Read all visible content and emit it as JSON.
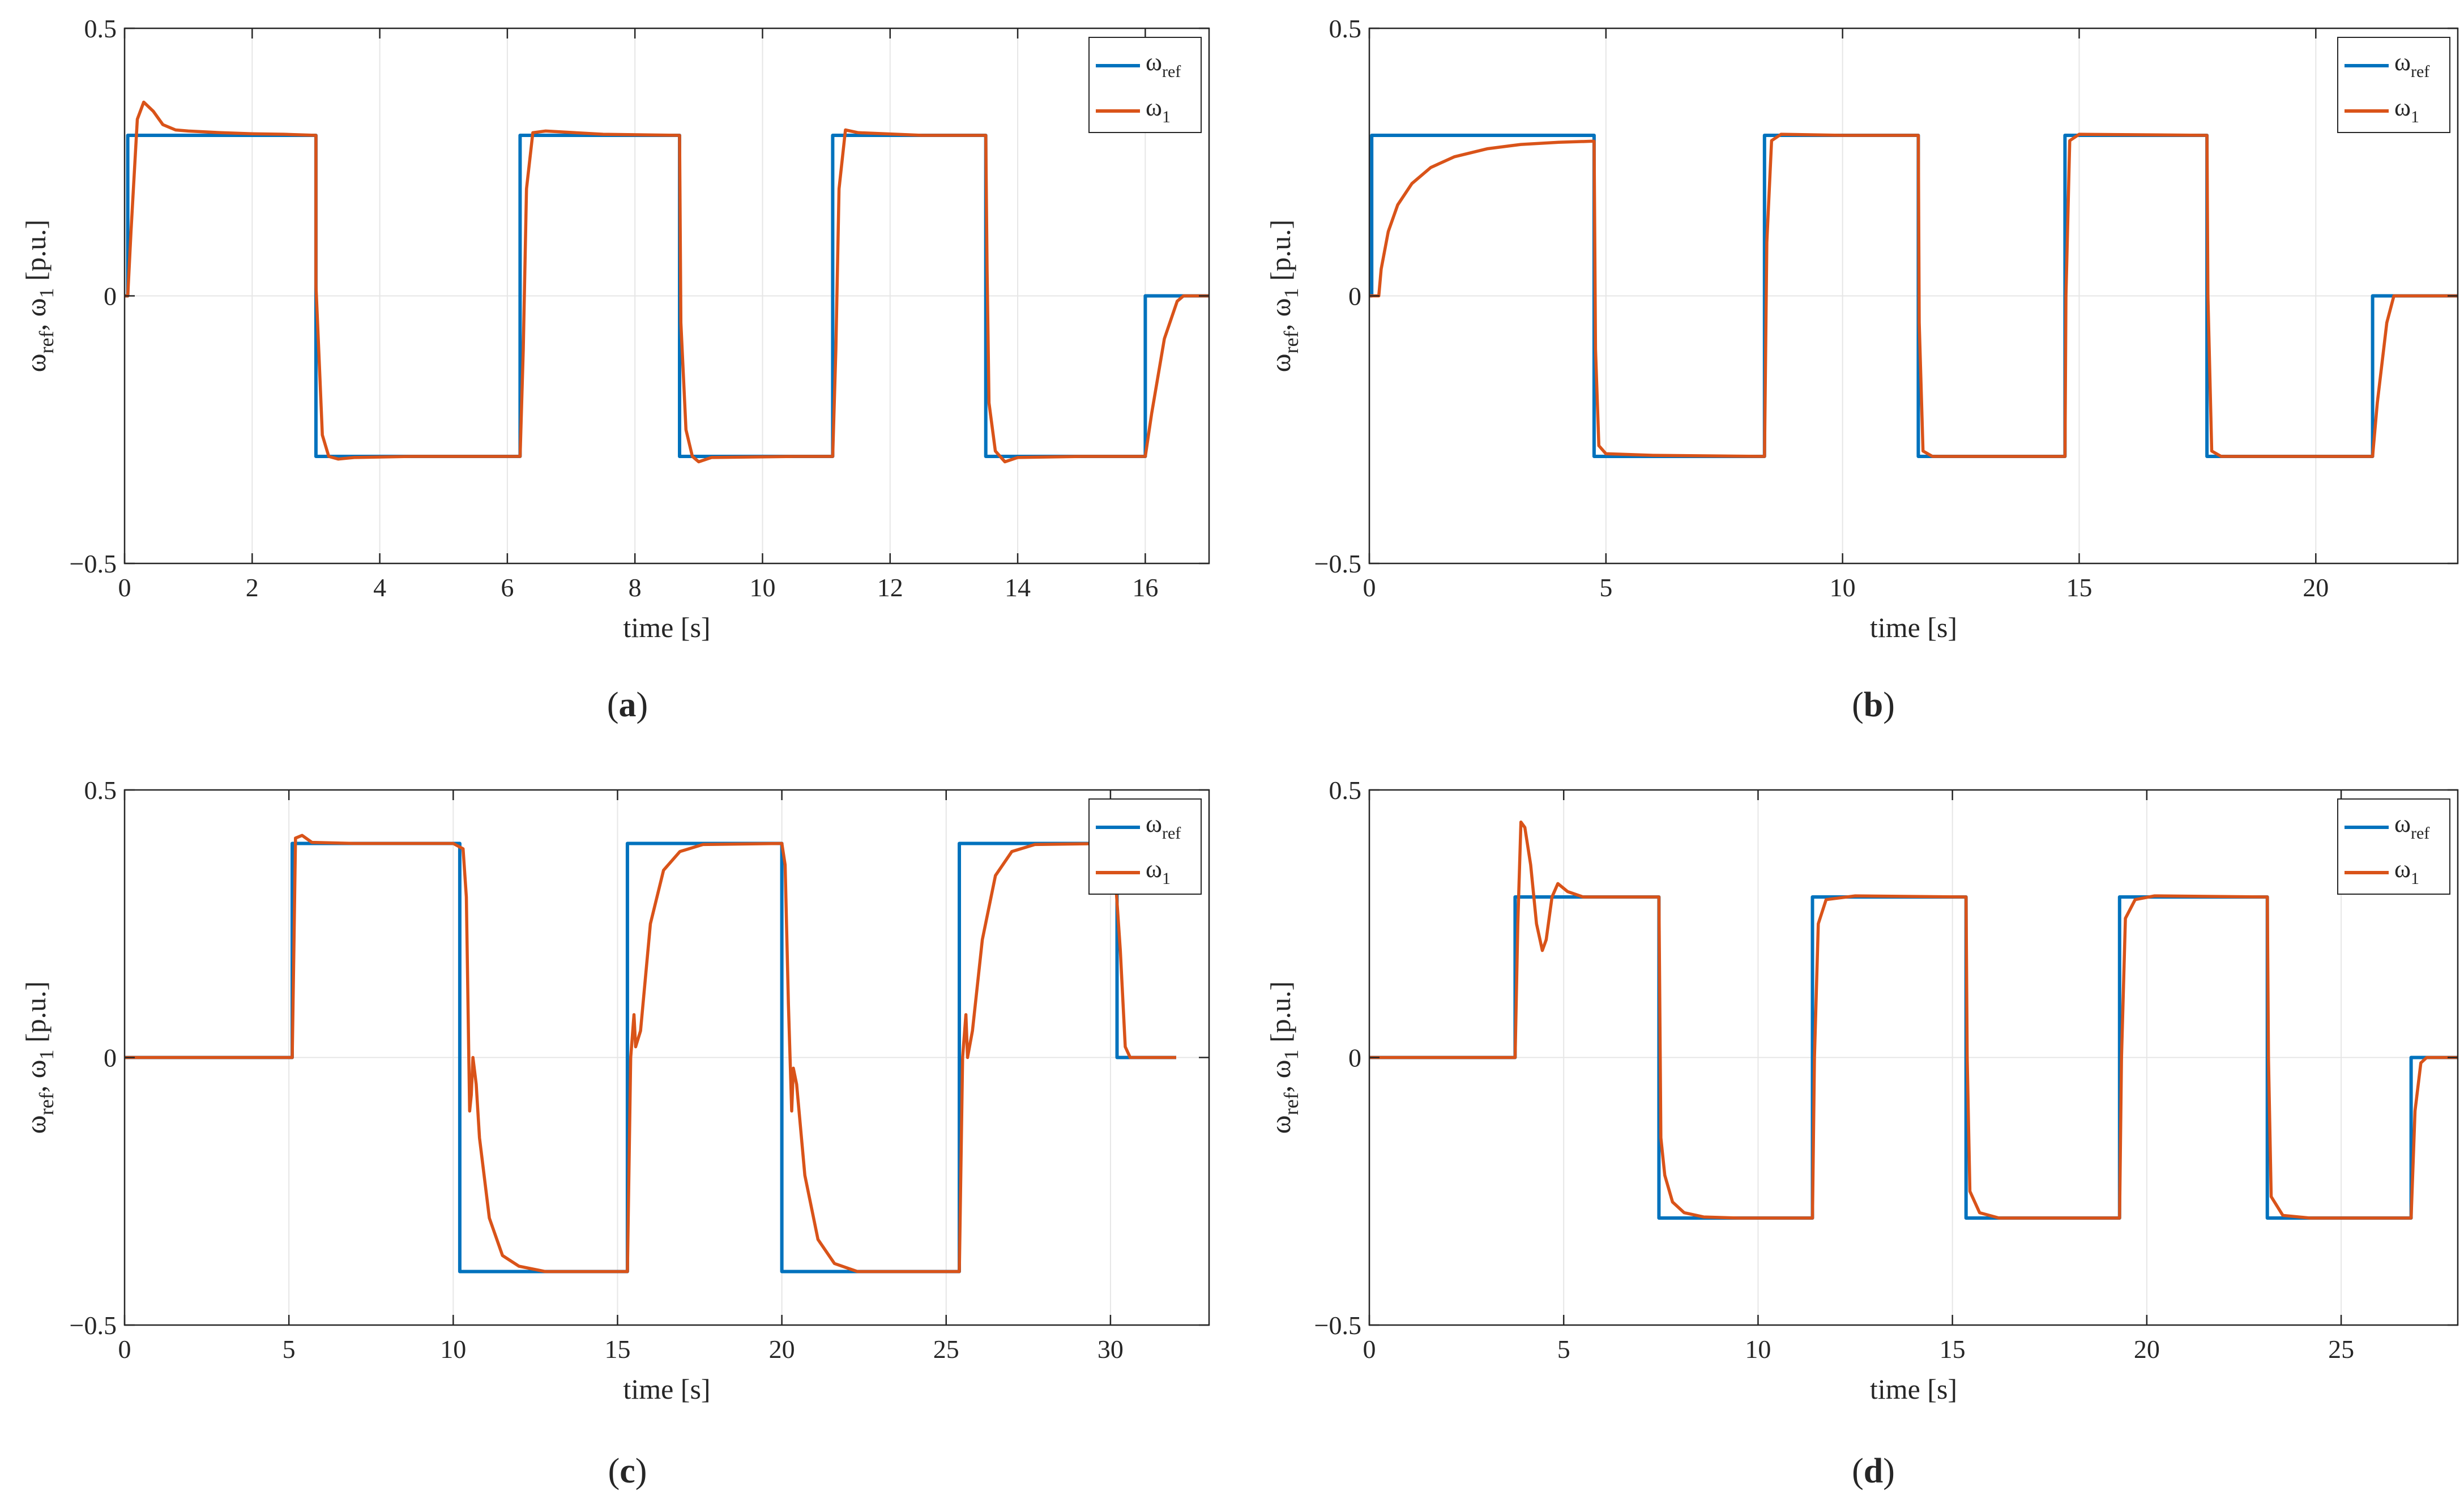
{
  "colors": {
    "reference": "#0072BD",
    "measured": "#D95319",
    "axis": "#262626",
    "grid": "#E6E6E6"
  },
  "chart_data": [
    {
      "type": "line",
      "caption": "a",
      "xlabel": "time [s]",
      "ylabel": "ωref, ω1 [p.u.]",
      "xlim": [
        0,
        17
      ],
      "ylim": [
        -0.5,
        0.5
      ],
      "xticks": [
        0,
        2,
        4,
        6,
        8,
        10,
        12,
        14,
        16
      ],
      "yticks": [
        -0.5,
        0,
        0.5
      ],
      "ytick_labels": [
        "−0.5",
        "0",
        "0.5"
      ],
      "grid": true,
      "legend": "top-right",
      "series": [
        {
          "name": "ωref",
          "role": "reference",
          "segments": [
            [
              0,
              0
            ],
            [
              0.05,
              0.3
            ],
            [
              3.0,
              -0.3
            ],
            [
              6.2,
              0.3
            ],
            [
              8.7,
              -0.3
            ],
            [
              11.1,
              0.3
            ],
            [
              13.5,
              -0.3
            ],
            [
              16.0,
              0
            ]
          ],
          "end": 17
        },
        {
          "name": "ω1",
          "role": "measured",
          "end": 17,
          "points": [
            [
              0,
              0
            ],
            [
              0.05,
              0
            ],
            [
              0.1,
              0.12
            ],
            [
              0.2,
              0.33
            ],
            [
              0.3,
              0.362
            ],
            [
              0.45,
              0.345
            ],
            [
              0.6,
              0.32
            ],
            [
              0.8,
              0.31
            ],
            [
              1.0,
              0.308
            ],
            [
              1.5,
              0.305
            ],
            [
              2.0,
              0.303
            ],
            [
              2.5,
              0.302
            ],
            [
              3.0,
              0.3
            ],
            [
              3.0,
              0.02
            ],
            [
              3.05,
              -0.12
            ],
            [
              3.1,
              -0.26
            ],
            [
              3.2,
              -0.3
            ],
            [
              3.35,
              -0.305
            ],
            [
              3.6,
              -0.302
            ],
            [
              4.5,
              -0.3
            ],
            [
              5.5,
              -0.3
            ],
            [
              6.2,
              -0.3
            ],
            [
              6.25,
              -0.1
            ],
            [
              6.3,
              0.2
            ],
            [
              6.4,
              0.305
            ],
            [
              6.6,
              0.308
            ],
            [
              7.5,
              0.302
            ],
            [
              8.7,
              0.3
            ],
            [
              8.72,
              -0.05
            ],
            [
              8.8,
              -0.25
            ],
            [
              8.9,
              -0.3
            ],
            [
              9.0,
              -0.31
            ],
            [
              9.2,
              -0.302
            ],
            [
              10.5,
              -0.3
            ],
            [
              11.1,
              -0.3
            ],
            [
              11.15,
              -0.1
            ],
            [
              11.2,
              0.2
            ],
            [
              11.3,
              0.31
            ],
            [
              11.5,
              0.305
            ],
            [
              12.5,
              0.3
            ],
            [
              13.5,
              0.3
            ],
            [
              13.52,
              0.05
            ],
            [
              13.55,
              -0.2
            ],
            [
              13.65,
              -0.29
            ],
            [
              13.8,
              -0.31
            ],
            [
              14.0,
              -0.302
            ],
            [
              15.0,
              -0.3
            ],
            [
              16.0,
              -0.3
            ],
            [
              16.1,
              -0.22
            ],
            [
              16.3,
              -0.08
            ],
            [
              16.5,
              -0.01
            ],
            [
              16.6,
              0
            ],
            [
              17,
              0
            ]
          ]
        }
      ]
    },
    {
      "type": "line",
      "caption": "b",
      "xlabel": "time [s]",
      "ylabel": "ωref, ω1 [p.u.]",
      "xlim": [
        0,
        23
      ],
      "ylim": [
        -0.5,
        0.5
      ],
      "xticks": [
        0,
        5,
        10,
        15,
        20
      ],
      "yticks": [
        -0.5,
        0,
        0.5
      ],
      "ytick_labels": [
        "−0.5",
        "0",
        "0.5"
      ],
      "grid": true,
      "legend": "top-right",
      "series": [
        {
          "name": "ωref",
          "role": "reference",
          "segments": [
            [
              0,
              0
            ],
            [
              0.05,
              0.3
            ],
            [
              4.75,
              -0.3
            ],
            [
              8.35,
              0.3
            ],
            [
              11.6,
              -0.3
            ],
            [
              14.7,
              0.3
            ],
            [
              17.7,
              -0.3
            ],
            [
              21.2,
              0
            ]
          ],
          "end": 23
        },
        {
          "name": "ω1",
          "role": "measured",
          "end": 23,
          "points": [
            [
              0,
              0
            ],
            [
              0.2,
              0
            ],
            [
              0.25,
              0.05
            ],
            [
              0.4,
              0.12
            ],
            [
              0.6,
              0.17
            ],
            [
              0.9,
              0.21
            ],
            [
              1.3,
              0.24
            ],
            [
              1.8,
              0.26
            ],
            [
              2.5,
              0.275
            ],
            [
              3.2,
              0.283
            ],
            [
              4.0,
              0.287
            ],
            [
              4.7,
              0.289
            ],
            [
              4.75,
              0.289
            ],
            [
              4.78,
              -0.1
            ],
            [
              4.85,
              -0.28
            ],
            [
              5.0,
              -0.295
            ],
            [
              6.0,
              -0.298
            ],
            [
              8.35,
              -0.3
            ],
            [
              8.4,
              0.1
            ],
            [
              8.5,
              0.29
            ],
            [
              8.7,
              0.302
            ],
            [
              10.0,
              0.3
            ],
            [
              11.6,
              0.3
            ],
            [
              11.62,
              -0.05
            ],
            [
              11.7,
              -0.29
            ],
            [
              11.9,
              -0.3
            ],
            [
              14.7,
              -0.3
            ],
            [
              14.72,
              0.0
            ],
            [
              14.8,
              0.29
            ],
            [
              15.0,
              0.302
            ],
            [
              17.7,
              0.3
            ],
            [
              17.72,
              0.0
            ],
            [
              17.8,
              -0.29
            ],
            [
              18.0,
              -0.3
            ],
            [
              21.2,
              -0.3
            ],
            [
              21.3,
              -0.2
            ],
            [
              21.5,
              -0.05
            ],
            [
              21.65,
              0
            ],
            [
              23,
              0
            ]
          ]
        }
      ]
    },
    {
      "type": "line",
      "caption": "c",
      "xlabel": "time [s]",
      "ylabel": "ωref, ω1 [p.u.]",
      "xlim": [
        0,
        33
      ],
      "ylim": [
        -0.5,
        0.5
      ],
      "xticks": [
        0,
        5,
        10,
        15,
        20,
        25,
        30
      ],
      "yticks": [
        -0.5,
        0,
        0.5
      ],
      "ytick_labels": [
        "−0.5",
        "0",
        "0.5"
      ],
      "grid": true,
      "legend": "top-right",
      "series": [
        {
          "name": "ωref",
          "role": "reference",
          "segments": [
            [
              0,
              0
            ],
            [
              5.1,
              0.4
            ],
            [
              10.2,
              -0.4
            ],
            [
              15.3,
              0.4
            ],
            [
              20.0,
              -0.4
            ],
            [
              25.4,
              0.4
            ],
            [
              30.2,
              0
            ]
          ],
          "end": 32
        },
        {
          "name": "ω1",
          "role": "measured",
          "end": 32,
          "points": [
            [
              0,
              0
            ],
            [
              5.1,
              0
            ],
            [
              5.15,
              0.2
            ],
            [
              5.2,
              0.41
            ],
            [
              5.4,
              0.415
            ],
            [
              5.7,
              0.402
            ],
            [
              7.0,
              0.4
            ],
            [
              10.0,
              0.4
            ],
            [
              10.3,
              0.39
            ],
            [
              10.4,
              0.3
            ],
            [
              10.5,
              -0.1
            ],
            [
              10.55,
              -0.07
            ],
            [
              10.6,
              0.0
            ],
            [
              10.7,
              -0.05
            ],
            [
              10.8,
              -0.15
            ],
            [
              11.1,
              -0.3
            ],
            [
              11.5,
              -0.37
            ],
            [
              12.0,
              -0.39
            ],
            [
              12.8,
              -0.4
            ],
            [
              15.3,
              -0.4
            ],
            [
              15.4,
              0.0
            ],
            [
              15.5,
              0.08
            ],
            [
              15.55,
              0.02
            ],
            [
              15.7,
              0.05
            ],
            [
              16.0,
              0.25
            ],
            [
              16.4,
              0.35
            ],
            [
              16.9,
              0.385
            ],
            [
              17.6,
              0.398
            ],
            [
              20.0,
              0.4
            ],
            [
              20.1,
              0.36
            ],
            [
              20.2,
              0.1
            ],
            [
              20.3,
              -0.1
            ],
            [
              20.35,
              -0.02
            ],
            [
              20.45,
              -0.05
            ],
            [
              20.7,
              -0.22
            ],
            [
              21.1,
              -0.34
            ],
            [
              21.6,
              -0.385
            ],
            [
              22.3,
              -0.4
            ],
            [
              25.4,
              -0.4
            ],
            [
              25.5,
              0.0
            ],
            [
              25.6,
              0.08
            ],
            [
              25.65,
              0.0
            ],
            [
              25.8,
              0.05
            ],
            [
              26.1,
              0.22
            ],
            [
              26.5,
              0.34
            ],
            [
              27.0,
              0.385
            ],
            [
              27.7,
              0.398
            ],
            [
              30.0,
              0.4
            ],
            [
              30.1,
              0.38
            ],
            [
              30.3,
              0.2
            ],
            [
              30.45,
              0.02
            ],
            [
              30.6,
              0
            ],
            [
              32,
              0
            ]
          ]
        }
      ]
    },
    {
      "type": "line",
      "caption": "d",
      "xlabel": "time [s]",
      "ylabel": "ωref, ω1 [p.u.]",
      "xlim": [
        0,
        28
      ],
      "ylim": [
        -0.5,
        0.5
      ],
      "xticks": [
        0,
        5,
        10,
        15,
        20,
        25
      ],
      "yticks": [
        -0.5,
        0,
        0.5
      ],
      "ytick_labels": [
        "−0.5",
        "0",
        "0.5"
      ],
      "grid": true,
      "legend": "top-right",
      "series": [
        {
          "name": "ωref",
          "role": "reference",
          "segments": [
            [
              0,
              0
            ],
            [
              3.75,
              0.3
            ],
            [
              7.45,
              -0.3
            ],
            [
              11.4,
              0.3
            ],
            [
              15.35,
              -0.3
            ],
            [
              19.3,
              0.3
            ],
            [
              23.1,
              -0.3
            ],
            [
              26.8,
              0
            ]
          ],
          "end": 28
        },
        {
          "name": "ω1",
          "role": "measured",
          "end": 28,
          "points": [
            [
              0,
              0
            ],
            [
              3.75,
              0
            ],
            [
              3.82,
              0.25
            ],
            [
              3.9,
              0.44
            ],
            [
              4.0,
              0.43
            ],
            [
              4.15,
              0.36
            ],
            [
              4.3,
              0.25
            ],
            [
              4.45,
              0.2
            ],
            [
              4.55,
              0.22
            ],
            [
              4.7,
              0.3
            ],
            [
              4.85,
              0.325
            ],
            [
              5.1,
              0.31
            ],
            [
              5.5,
              0.3
            ],
            [
              6.5,
              0.3
            ],
            [
              7.45,
              0.3
            ],
            [
              7.5,
              -0.15
            ],
            [
              7.6,
              -0.22
            ],
            [
              7.8,
              -0.27
            ],
            [
              8.1,
              -0.29
            ],
            [
              8.6,
              -0.298
            ],
            [
              9.5,
              -0.3
            ],
            [
              11.4,
              -0.3
            ],
            [
              11.45,
              0.0
            ],
            [
              11.55,
              0.25
            ],
            [
              11.75,
              0.295
            ],
            [
              12.5,
              0.302
            ],
            [
              15.35,
              0.3
            ],
            [
              15.38,
              0.0
            ],
            [
              15.45,
              -0.25
            ],
            [
              15.7,
              -0.29
            ],
            [
              16.2,
              -0.3
            ],
            [
              19.3,
              -0.3
            ],
            [
              19.35,
              0.0
            ],
            [
              19.45,
              0.26
            ],
            [
              19.7,
              0.295
            ],
            [
              20.2,
              0.302
            ],
            [
              23.1,
              0.3
            ],
            [
              23.13,
              0.0
            ],
            [
              23.2,
              -0.26
            ],
            [
              23.5,
              -0.295
            ],
            [
              24.2,
              -0.3
            ],
            [
              26.8,
              -0.3
            ],
            [
              26.9,
              -0.1
            ],
            [
              27.05,
              -0.01
            ],
            [
              27.2,
              0
            ],
            [
              28,
              0
            ]
          ]
        }
      ]
    }
  ]
}
